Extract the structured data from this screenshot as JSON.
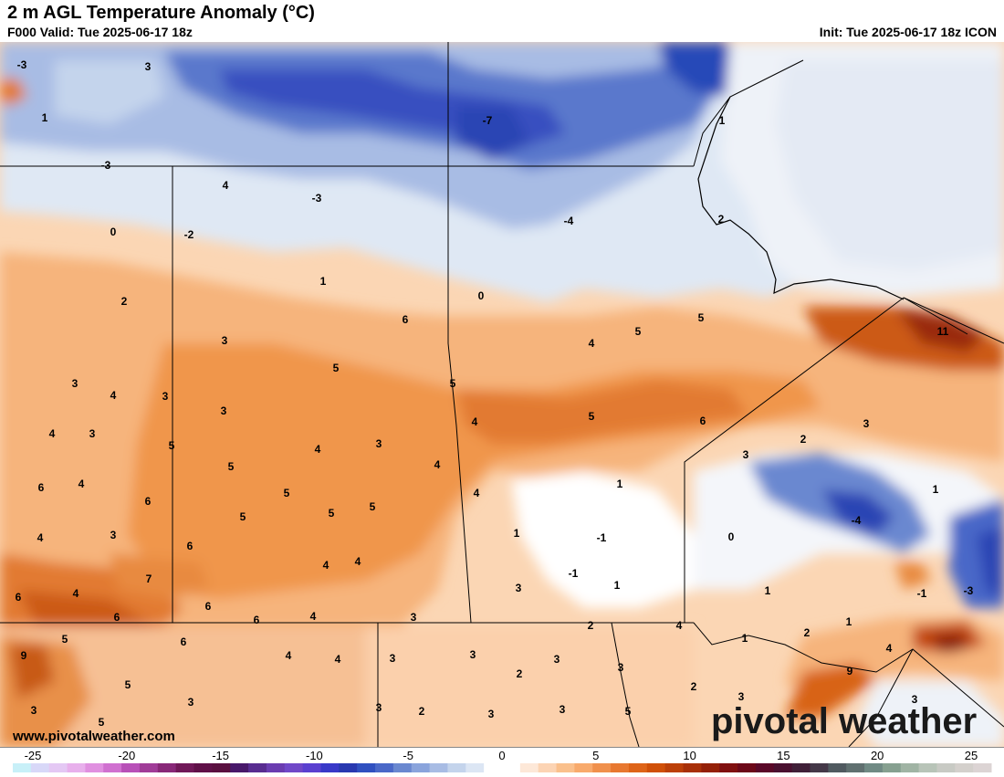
{
  "header": {
    "title": "2 m AGL Temperature Anomaly (°C)",
    "valid": "F000 Valid: Tue 2025-06-17 18z",
    "init": "Init: Tue 2025-06-17 18z ICON"
  },
  "footer": {
    "website": "www.pivotalweather.com",
    "logo": "pivotal weather"
  },
  "colorbar": {
    "ticks": [
      "-25",
      "-20",
      "-15",
      "-10",
      "-5",
      "0",
      "5",
      "10",
      "15",
      "20",
      "25"
    ],
    "colors": [
      "#c8f0f8",
      "#d8d8f8",
      "#e4c8f4",
      "#e8b0ec",
      "#e090e0",
      "#d070d0",
      "#b850b8",
      "#a03c98",
      "#882878",
      "#701858",
      "#601048",
      "#5a1040",
      "#48186a",
      "#582c90",
      "#6a3cb0",
      "#7048c8",
      "#5a40d0",
      "#3838c8",
      "#2838b0",
      "#3050c0",
      "#4a68c8",
      "#6a88d0",
      "#8aa4dc",
      "#a8bce4",
      "#c4d4ec",
      "#dce6f4",
      "#ffffff",
      "#ffffff",
      "#fde8d8",
      "#fcd4b4",
      "#fac08c",
      "#f8aa6c",
      "#f0904c",
      "#e87830",
      "#de6418",
      "#d05008",
      "#bc4008",
      "#a83008",
      "#942008",
      "#801010",
      "#6c0818",
      "#5a0828",
      "#4a1030",
      "#402038",
      "#443848",
      "#505a60",
      "#607070",
      "#708a84",
      "#86a090",
      "#a0b4a4",
      "#b8c4b8",
      "#c8cac4",
      "#d4d0cc",
      "#dcd4d4"
    ]
  },
  "map": {
    "labels": [
      {
        "text": "-3"
      },
      {
        "text": "3"
      },
      {
        "text": "1"
      },
      {
        "text": "-3"
      },
      {
        "text": "4"
      },
      {
        "text": "-3"
      },
      {
        "text": "0"
      },
      {
        "text": "-2"
      },
      {
        "text": "-7"
      },
      {
        "text": "1"
      },
      {
        "text": "-4"
      },
      {
        "text": "2"
      },
      {
        "text": "1"
      },
      {
        "text": "0"
      },
      {
        "text": "2"
      },
      {
        "text": "6"
      },
      {
        "text": "5"
      },
      {
        "text": "5"
      },
      {
        "text": "4"
      },
      {
        "text": "11"
      },
      {
        "text": "3"
      },
      {
        "text": "5"
      },
      {
        "text": "3"
      },
      {
        "text": "4"
      },
      {
        "text": "3"
      },
      {
        "text": "5"
      },
      {
        "text": "3"
      },
      {
        "text": "4"
      },
      {
        "text": "5"
      },
      {
        "text": "6"
      },
      {
        "text": "3"
      },
      {
        "text": "4"
      },
      {
        "text": "3"
      },
      {
        "text": "5"
      },
      {
        "text": "4"
      },
      {
        "text": "3"
      },
      {
        "text": "2"
      },
      {
        "text": "3"
      },
      {
        "text": "4"
      },
      {
        "text": "5"
      },
      {
        "text": "4"
      },
      {
        "text": "6"
      },
      {
        "text": "5"
      },
      {
        "text": "5"
      },
      {
        "text": "5"
      },
      {
        "text": "4"
      },
      {
        "text": "1"
      },
      {
        "text": "1"
      },
      {
        "text": "4"
      },
      {
        "text": "3"
      },
      {
        "text": "6"
      },
      {
        "text": "1"
      },
      {
        "text": "-1"
      },
      {
        "text": "0"
      },
      {
        "text": "-4"
      },
      {
        "text": "6"
      },
      {
        "text": "5"
      },
      {
        "text": "4"
      },
      {
        "text": "4"
      },
      {
        "text": "-1"
      },
      {
        "text": "1"
      },
      {
        "text": "3"
      },
      {
        "text": "1"
      },
      {
        "text": "-1"
      },
      {
        "text": "-3"
      },
      {
        "text": "7"
      },
      {
        "text": "6"
      },
      {
        "text": "4"
      },
      {
        "text": "6"
      },
      {
        "text": "6"
      },
      {
        "text": "6"
      },
      {
        "text": "4"
      },
      {
        "text": "3"
      },
      {
        "text": "2"
      },
      {
        "text": "4"
      },
      {
        "text": "1"
      },
      {
        "text": "2"
      },
      {
        "text": "1"
      },
      {
        "text": "9"
      },
      {
        "text": "5"
      },
      {
        "text": "6"
      },
      {
        "text": "4"
      },
      {
        "text": "4"
      },
      {
        "text": "3"
      },
      {
        "text": "3"
      },
      {
        "text": "3"
      },
      {
        "text": "4"
      },
      {
        "text": "5"
      },
      {
        "text": "2"
      },
      {
        "text": "3"
      },
      {
        "text": "9"
      },
      {
        "text": "3"
      },
      {
        "text": "2"
      },
      {
        "text": "3"
      },
      {
        "text": "3"
      },
      {
        "text": "3"
      },
      {
        "text": "2"
      },
      {
        "text": "3"
      },
      {
        "text": "5"
      },
      {
        "text": "3"
      },
      {
        "text": "3"
      },
      {
        "text": "5"
      }
    ]
  }
}
